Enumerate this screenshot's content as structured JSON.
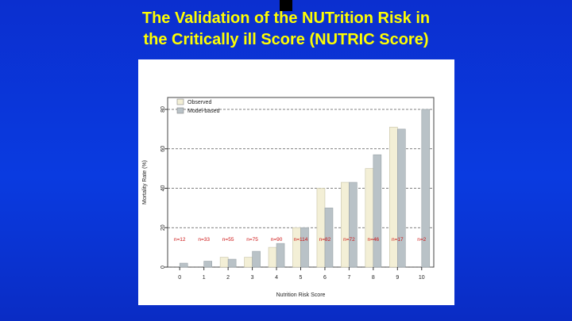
{
  "slide": {
    "title_line1": "The Validation of the NUTrition Risk in",
    "title_line2": "the Critically ill Score (NUTRIC Score)"
  },
  "colors": {
    "background": "#0a3be0",
    "title": "#ffff00",
    "observed": "#f3efd6",
    "model": "#b9c2c7",
    "n_label": "#cc1111",
    "gridline": "#555555"
  },
  "chart_data": {
    "type": "bar",
    "xlabel": "Nutrition Risk Score",
    "ylabel": "Mortality Rate (%)",
    "ylim": [
      0,
      85
    ],
    "yticks": [
      0,
      20,
      40,
      60,
      80
    ],
    "grid": "dashed horizontal",
    "legend_position": "top-left",
    "categories": [
      "0",
      "1",
      "2",
      "3",
      "4",
      "5",
      "6",
      "7",
      "8",
      "9",
      "10"
    ],
    "series": [
      {
        "name": "Observed",
        "values": [
          0,
          0,
          5,
          5,
          10,
          20,
          40,
          43,
          50,
          71,
          0
        ]
      },
      {
        "name": "Model-based",
        "values": [
          2,
          3,
          4,
          8,
          12,
          20,
          30,
          43,
          57,
          70,
          80
        ]
      }
    ],
    "sample_sizes": [
      "n=12",
      "n=33",
      "n=55",
      "n=75",
      "n=90",
      "n=114",
      "n=82",
      "n=72",
      "n=46",
      "n=17",
      "n=2"
    ]
  }
}
